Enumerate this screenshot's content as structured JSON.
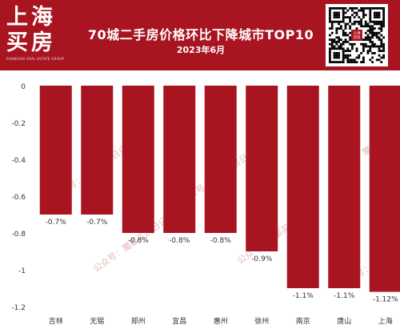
{
  "header": {
    "logo_line1": "上海",
    "logo_line2": "买房",
    "logo_sub": "SHANGHAI REAL ESTATE GROUP",
    "title": "70城二手房价格环比下降城市TOP10",
    "subtitle": "2023年6月",
    "qr_icon": "qr-code-icon",
    "qr_badge": "上海\n买房",
    "bg_color": "#a81420"
  },
  "watermark": "公众号：魔都买房日记",
  "chart_data": {
    "type": "bar",
    "title": "70城二手房价格环比下降城市TOP10",
    "subtitle": "2023年6月",
    "categories": [
      "吉林",
      "无锡",
      "郑州",
      "宜昌",
      "惠州",
      "徐州",
      "南京",
      "唐山",
      "上海"
    ],
    "values": [
      -0.7,
      -0.7,
      -0.8,
      -0.8,
      -0.8,
      -0.9,
      -1.1,
      -1.1,
      -1.12
    ],
    "data_labels": [
      "-0.7%",
      "-0.7%",
      "-0.8%",
      "-0.8%",
      "-0.8%",
      "-0.9%",
      "-1.1%",
      "-1.1%",
      "-1.12%"
    ],
    "ylim": [
      -1.2,
      0
    ],
    "yticks": [
      0,
      -0.2,
      -0.4,
      -0.6,
      -0.8,
      -1,
      -1.2
    ],
    "ytick_labels": [
      "0",
      "-0.2",
      "-0.4",
      "-0.6",
      "-0.8",
      "-1",
      "-1.2"
    ],
    "xlabel": "",
    "ylabel": "",
    "bar_color": "#a81420",
    "grid": false,
    "legend": "none"
  }
}
